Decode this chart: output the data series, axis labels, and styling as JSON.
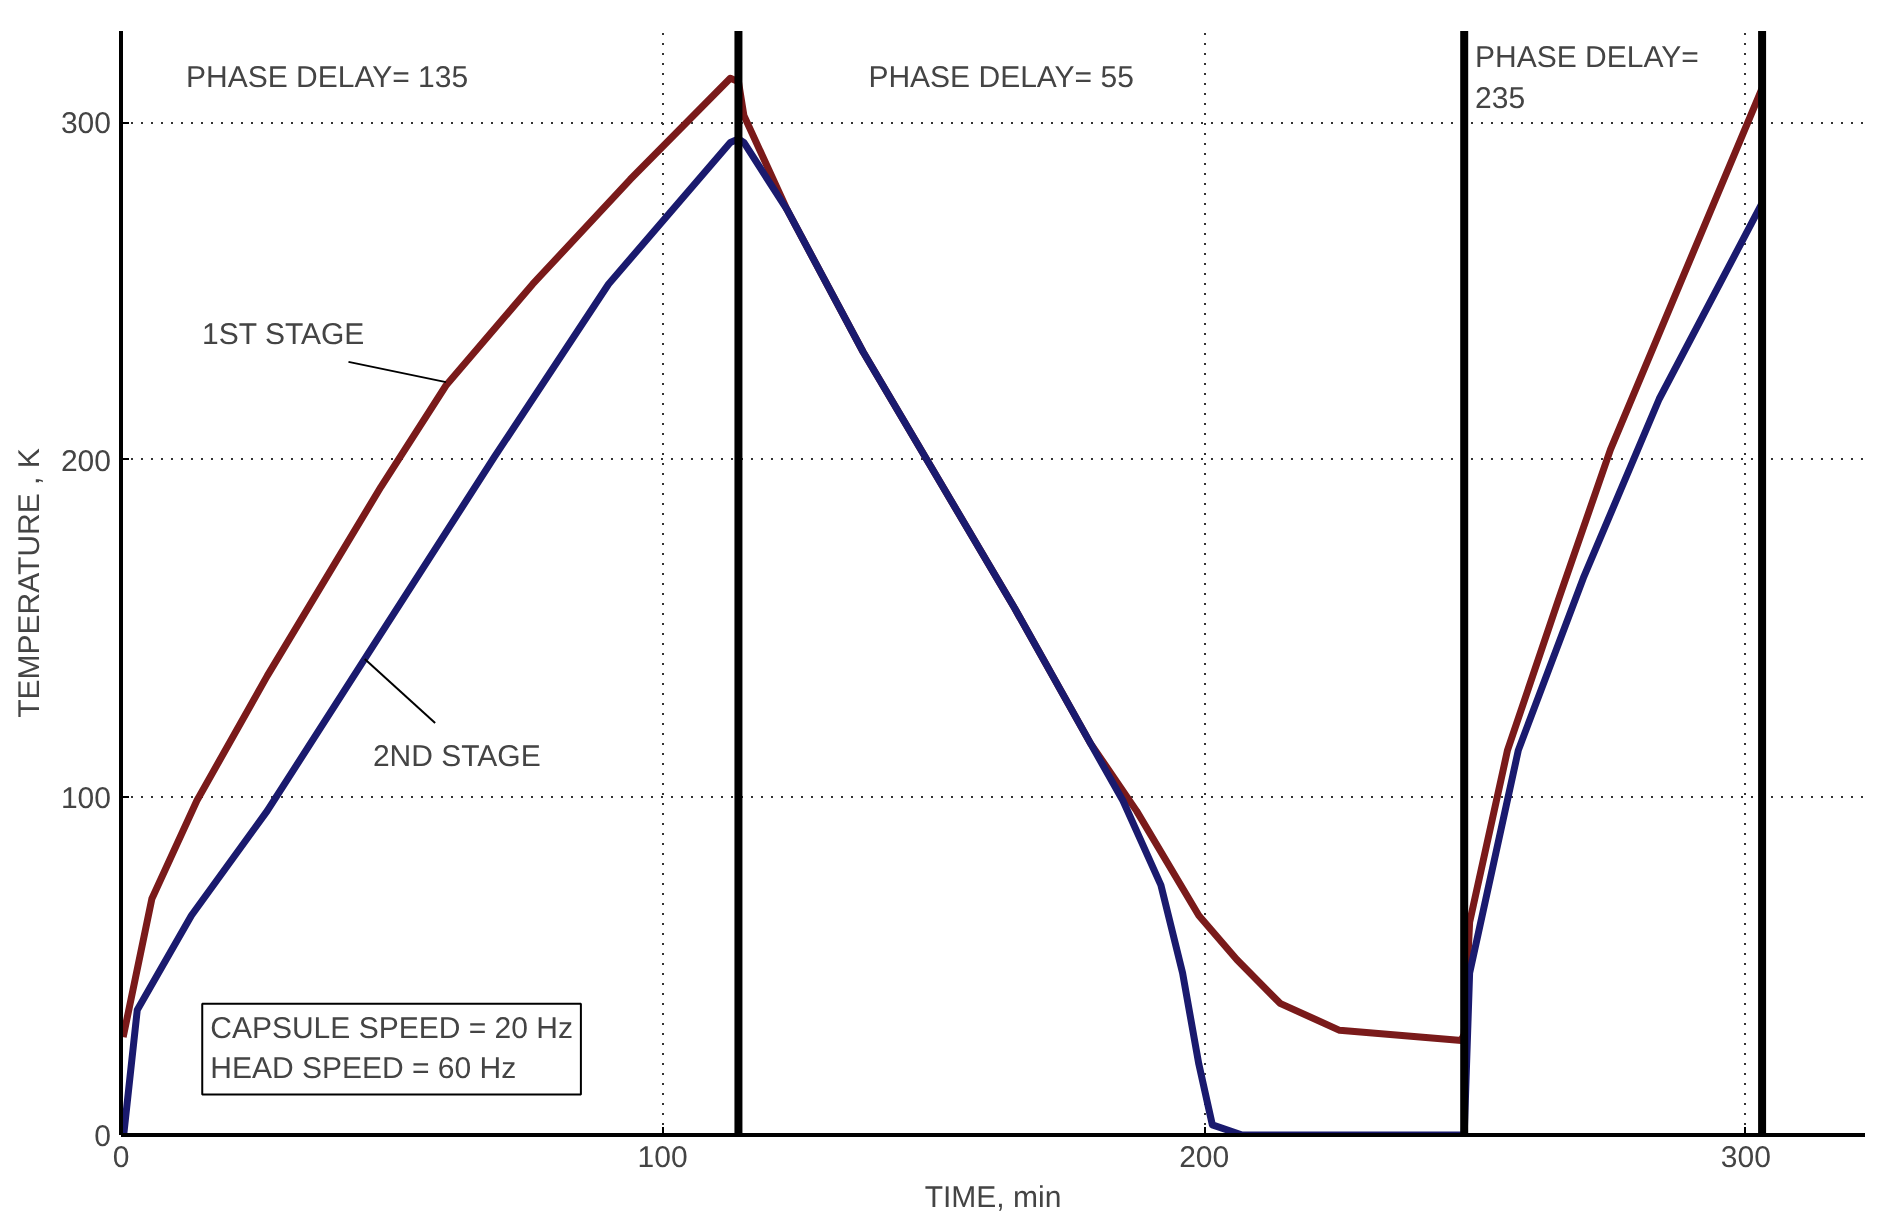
{
  "chart_data": {
    "type": "line",
    "xlabel": "TIME, min",
    "ylabel": "TEMPERATURE , K",
    "xlim": [
      0,
      322
    ],
    "ylim": [
      0,
      327
    ],
    "xticks": [
      0,
      100,
      200,
      300
    ],
    "yticks": [
      0,
      100,
      200,
      300
    ],
    "grid": true,
    "line_style": "solid",
    "series": [
      {
        "name": "1ST STAGE",
        "color": "#7a1a1a",
        "x": [
          0.4,
          5.7,
          14,
          27,
          48,
          60,
          76,
          94,
          112.5,
          114,
          115,
          123,
          137,
          151,
          165,
          179,
          187.5,
          199,
          206,
          214,
          225,
          247.5,
          248,
          249,
          256,
          265.5,
          275,
          286.5,
          303
        ],
        "values": [
          29,
          70,
          99,
          136,
          192,
          222,
          252,
          283,
          313,
          312,
          302,
          274,
          232,
          194,
          156,
          116,
          96,
          65,
          52,
          39,
          31,
          28,
          30,
          63,
          114,
          159,
          203,
          247,
          310
        ]
      },
      {
        "name": "2ND STAGE",
        "color": "#1a1a6e",
        "x": [
          0.5,
          3,
          13,
          27,
          45,
          69,
          90,
          112.5,
          114,
          115,
          123,
          137,
          151,
          165,
          179,
          185,
          192,
          196,
          199,
          201.5,
          207,
          247.5,
          248,
          249,
          258,
          270,
          284,
          303
        ],
        "values": [
          0,
          37,
          65,
          96,
          141,
          201,
          252,
          294,
          295,
          294,
          274,
          232,
          194,
          156,
          116,
          99,
          74,
          48,
          21,
          3,
          0,
          0,
          0,
          48,
          114,
          165,
          218,
          276
        ]
      }
    ],
    "ref_lines": [
      {
        "axis": "x",
        "value": 114,
        "color": "#000000"
      },
      {
        "axis": "x",
        "value": 248,
        "color": "#000000"
      },
      {
        "axis": "x",
        "value": 303,
        "color": "#000000"
      }
    ],
    "annotations": [
      "PHASE DELAY= 135",
      "PHASE DELAY= 55",
      "PHASE DELAY=\n235",
      "CAPSULE SPEED = 20 Hz\nHEAD SPEED = 60 Hz"
    ]
  }
}
